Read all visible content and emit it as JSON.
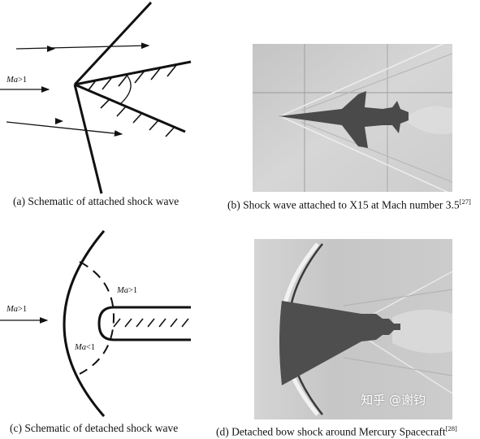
{
  "panels": {
    "a": {
      "caption": "(a) Schematic of attached shock wave",
      "mach_label": "Ma",
      "mach_suffix": ">1"
    },
    "b": {
      "caption": "(b) Shock wave attached to X15 at Mach number 3.5",
      "ref": "[27]"
    },
    "c": {
      "caption": "(c) Schematic of detached shock wave",
      "mach_left_label": "Ma",
      "mach_left_suffix": ">1",
      "mach_upper_label": "Ma",
      "mach_upper_suffix": ">1",
      "mach_lower_label": "Ma",
      "mach_lower_suffix": "<1"
    },
    "d": {
      "caption": "(d) Detached bow shock around Mercury Spacecraft",
      "ref": "[28]"
    }
  },
  "watermark": "知乎 @谢钧",
  "colors": {
    "photo_background": "#cfcfcf",
    "silhouette": "#4a4a4a",
    "line": "#111111"
  }
}
